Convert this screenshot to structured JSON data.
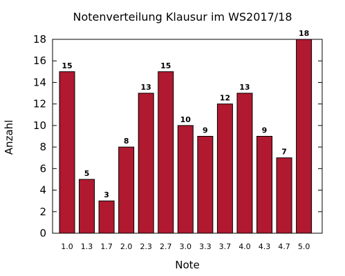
{
  "chart_data": {
    "type": "bar",
    "title": "Notenverteilung Klausur im WS2017/18",
    "xlabel": "Note",
    "ylabel": "Anzahl",
    "categories": [
      "1.0",
      "1.3",
      "1.7",
      "2.0",
      "2.3",
      "2.7",
      "3.0",
      "3.3",
      "3.7",
      "4.0",
      "4.3",
      "4.7",
      "5.0"
    ],
    "values": [
      15,
      5,
      3,
      8,
      13,
      15,
      10,
      9,
      12,
      13,
      9,
      7,
      18
    ],
    "ylim": [
      0,
      18
    ],
    "yticks": [
      0,
      2,
      4,
      6,
      8,
      10,
      12,
      14,
      16,
      18
    ],
    "grid": false,
    "legend": "none",
    "bar_color": "#b0192f",
    "data_labels": true
  }
}
